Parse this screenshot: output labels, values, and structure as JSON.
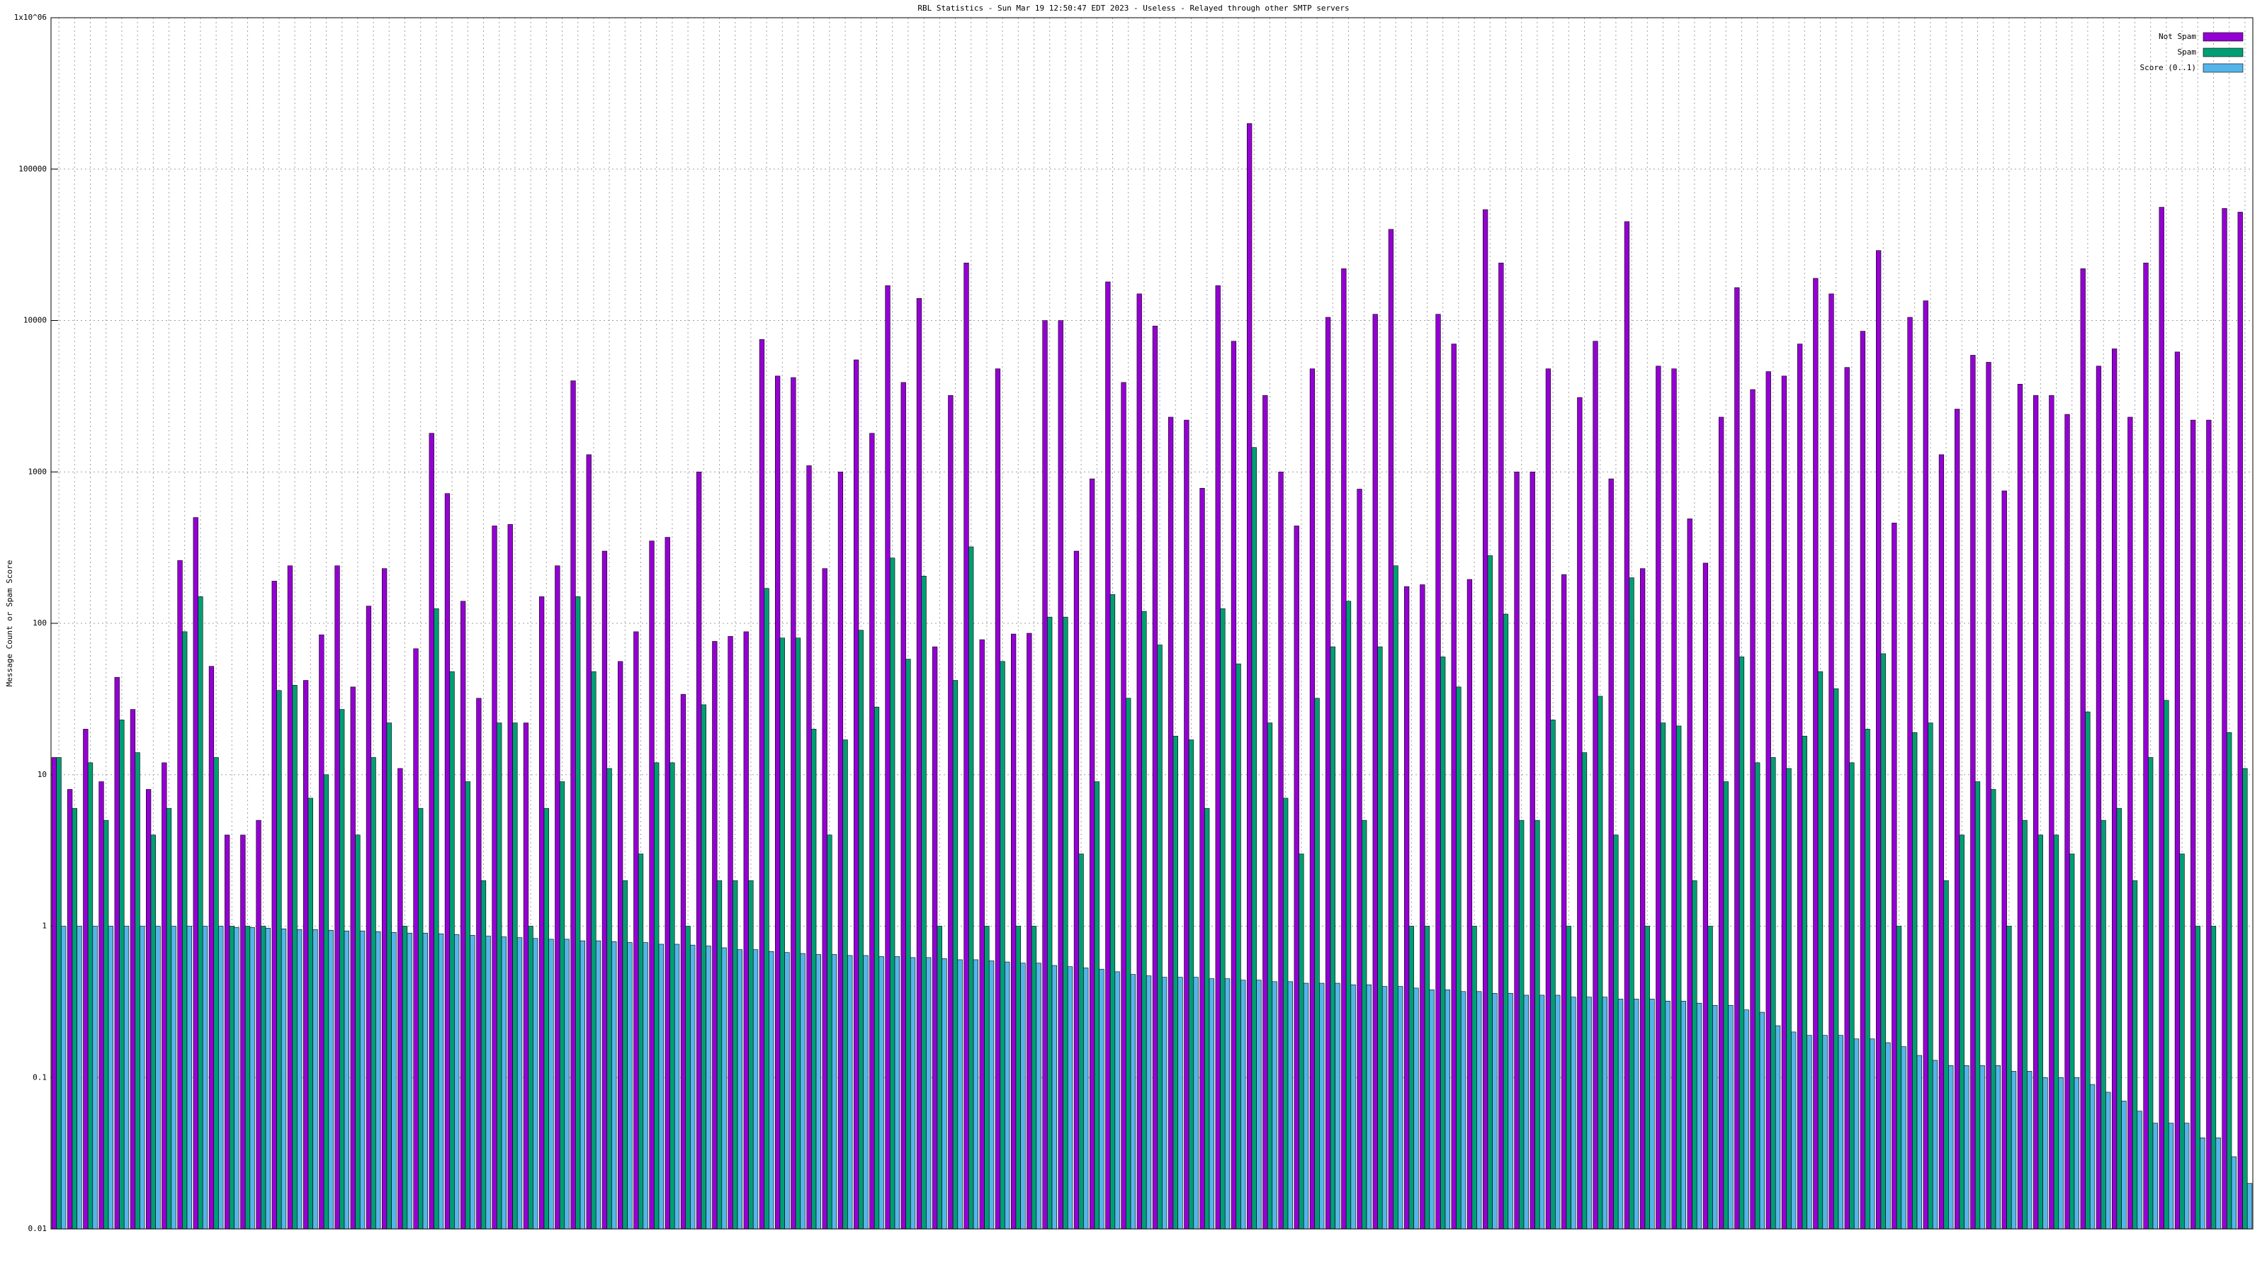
{
  "chart_data": {
    "type": "bar",
    "title": "RBL Statistics - Sun Mar 19 12:50:47 EDT 2023 - Useless - Relayed through other SMTP servers",
    "y_label": "Message Count or Spam Score",
    "log_scale": true,
    "grid": true,
    "legend_position": "top-right",
    "ylim": [
      0.01,
      1000000
    ],
    "yticks": [
      0.01,
      0.1,
      1,
      10,
      100,
      1000,
      10000,
      100000,
      {
        "value": 1000000,
        "label": "1x10^06"
      }
    ],
    "categories": [
      null,
      null,
      null,
      null,
      null,
      null,
      null,
      null,
      null,
      null,
      null,
      null,
      null,
      null,
      null,
      null,
      null,
      null,
      null,
      null,
      null,
      null,
      null,
      null,
      null,
      null,
      null,
      null,
      null,
      null,
      null,
      null,
      null,
      null,
      null,
      null,
      null,
      null,
      null,
      null,
      null,
      null,
      null,
      null,
      null,
      null,
      null,
      null,
      null,
      null,
      null,
      null,
      null,
      null,
      null,
      null,
      null,
      null,
      null,
      null,
      null,
      null,
      null,
      null,
      null,
      null,
      null,
      null,
      null,
      null,
      null,
      null,
      null,
      null,
      null,
      null,
      null,
      null,
      null,
      null,
      null,
      null,
      null,
      null,
      null,
      null,
      null,
      null,
      null,
      null,
      null,
      null,
      null,
      null,
      null,
      null,
      null,
      null,
      null,
      null,
      null,
      null,
      null,
      null,
      null,
      null,
      null,
      null,
      null,
      null,
      null,
      null,
      null,
      null,
      null,
      null,
      null,
      null,
      null,
      null,
      null,
      null,
      null,
      null,
      null,
      null,
      null,
      null,
      null,
      null,
      null,
      null,
      null,
      null,
      null,
      null,
      null,
      null,
      null,
      null
    ],
    "series": [
      {
        "name": "Not Spam",
        "color": "#9400d3",
        "values": [
          13,
          8,
          20,
          9,
          44,
          27,
          8,
          12,
          260,
          500,
          52,
          4,
          4,
          5,
          190,
          240,
          42,
          84,
          240,
          38,
          130,
          230,
          11,
          68,
          1800,
          720,
          140,
          32,
          440,
          450,
          22,
          150,
          240,
          4000,
          1300,
          300,
          56,
          88,
          350,
          370,
          34,
          1000,
          76,
          82,
          88,
          7500,
          4300,
          4200,
          1100,
          230,
          1000,
          5500,
          1800,
          17000,
          3900,
          14000,
          70,
          3200,
          24000,
          78,
          4800,
          85,
          86,
          10000,
          10000,
          300,
          900,
          18000,
          3900,
          15000,
          9200,
          2300,
          2200,
          780,
          17000,
          7300,
          200000,
          3200,
          1000,
          440,
          4800,
          10500,
          22000,
          770,
          11000,
          40000,
          175,
          180,
          11000,
          7000,
          195,
          54000,
          24000,
          1000,
          1000,
          4800,
          210,
          3100,
          7300,
          900,
          45000,
          230,
          5000,
          4800,
          490,
          250,
          2300,
          16500,
          3500,
          4600,
          4300,
          7000,
          19000,
          15000,
          4900,
          8500,
          29000,
          460,
          10500,
          13500,
          1300,
          2600,
          5900,
          5300,
          750,
          3800,
          3200,
          3200,
          2400,
          22000,
          5000,
          6500,
          2300,
          24000,
          56000,
          6200,
          2200,
          2200,
          55000,
          52000
        ]
      },
      {
        "name": "Spam",
        "color": "#009e73",
        "values": [
          13,
          6,
          12,
          5,
          23,
          14,
          4,
          6,
          88,
          150,
          13,
          1,
          1,
          1,
          36,
          39,
          7,
          10,
          27,
          4,
          13,
          22,
          1,
          6,
          125,
          48,
          9,
          2,
          22,
          22,
          1,
          6,
          9,
          150,
          48,
          11,
          2,
          3,
          12,
          12,
          1,
          29,
          2,
          2,
          2,
          170,
          80,
          80,
          20,
          4,
          17,
          90,
          28,
          270,
          58,
          205,
          1,
          42,
          320,
          1,
          56,
          1,
          1,
          110,
          110,
          3,
          9,
          155,
          32,
          120,
          72,
          18,
          17,
          6,
          125,
          54,
          1450,
          22,
          7,
          3,
          32,
          70,
          140,
          5,
          70,
          240,
          1,
          1,
          60,
          38,
          1,
          280,
          115,
          5,
          5,
          23,
          1,
          14,
          33,
          4,
          200,
          1,
          22,
          21,
          2,
          1,
          9,
          60,
          12,
          13,
          11,
          18,
          48,
          37,
          12,
          20,
          63,
          1,
          19,
          22,
          2,
          4,
          9,
          8,
          1,
          5,
          4,
          4,
          3,
          26,
          5,
          6,
          2,
          13,
          31,
          3,
          1,
          1,
          19,
          11
        ]
      },
      {
        "name": "Score (0..1)",
        "color": "#56b4e9",
        "values": [
          1,
          1,
          1,
          1,
          1,
          1,
          1,
          1,
          1,
          1,
          1,
          0.98,
          0.98,
          0.97,
          0.96,
          0.95,
          0.95,
          0.94,
          0.93,
          0.93,
          0.92,
          0.91,
          0.9,
          0.9,
          0.89,
          0.88,
          0.87,
          0.86,
          0.85,
          0.84,
          0.83,
          0.82,
          0.82,
          0.8,
          0.8,
          0.79,
          0.78,
          0.78,
          0.76,
          0.76,
          0.75,
          0.74,
          0.72,
          0.7,
          0.7,
          0.68,
          0.67,
          0.66,
          0.65,
          0.65,
          0.64,
          0.64,
          0.63,
          0.63,
          0.62,
          0.62,
          0.61,
          0.6,
          0.6,
          0.59,
          0.58,
          0.57,
          0.57,
          0.55,
          0.54,
          0.53,
          0.52,
          0.5,
          0.48,
          0.47,
          0.46,
          0.46,
          0.46,
          0.45,
          0.45,
          0.44,
          0.44,
          0.43,
          0.43,
          0.42,
          0.42,
          0.42,
          0.41,
          0.41,
          0.4,
          0.4,
          0.39,
          0.38,
          0.38,
          0.37,
          0.37,
          0.36,
          0.36,
          0.35,
          0.35,
          0.35,
          0.34,
          0.34,
          0.34,
          0.33,
          0.33,
          0.33,
          0.32,
          0.32,
          0.31,
          0.3,
          0.3,
          0.28,
          0.27,
          0.22,
          0.2,
          0.19,
          0.19,
          0.19,
          0.18,
          0.18,
          0.17,
          0.16,
          0.14,
          0.13,
          0.12,
          0.12,
          0.12,
          0.12,
          0.11,
          0.11,
          0.1,
          0.1,
          0.1,
          0.09,
          0.08,
          0.07,
          0.06,
          0.05,
          0.05,
          0.05,
          0.04,
          0.04,
          0.03,
          0.02
        ]
      }
    ]
  }
}
